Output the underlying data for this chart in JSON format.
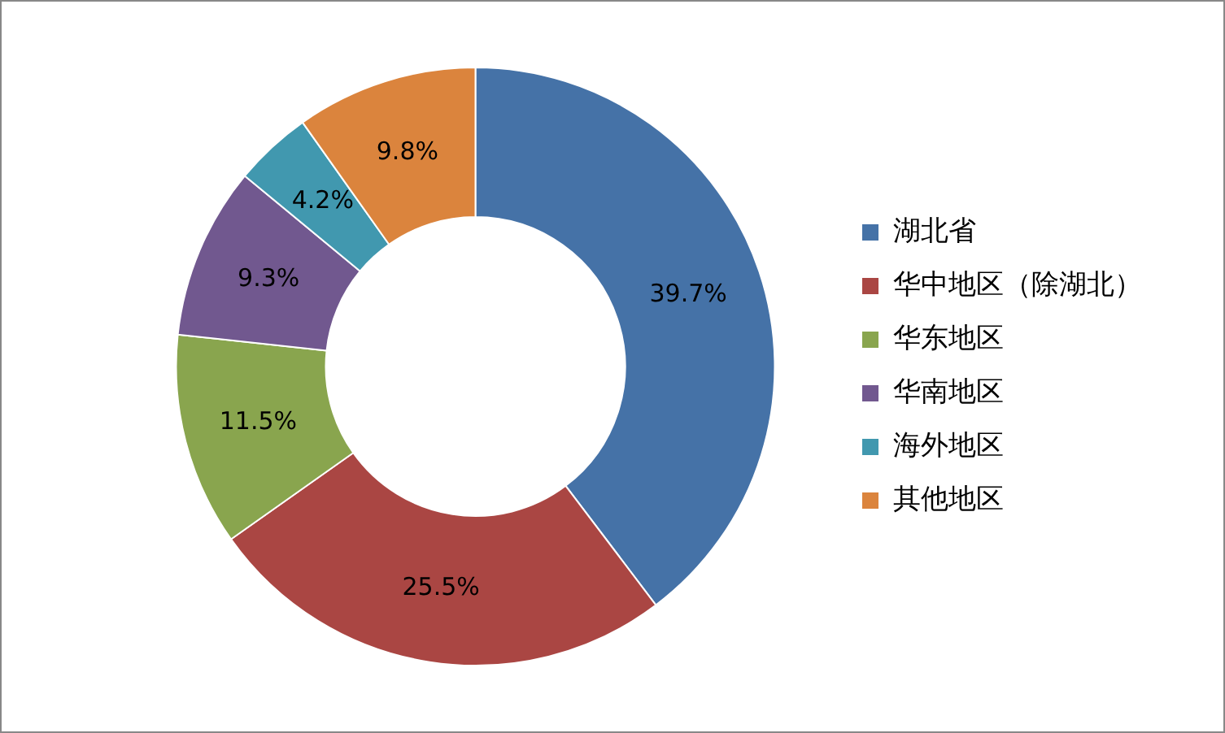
{
  "chart_data": {
    "type": "donut",
    "categories": [
      "湖北省",
      "华中地区（除湖北）",
      "华东地区",
      "华南地区",
      "海外地区",
      "其他地区"
    ],
    "values": [
      39.7,
      25.5,
      11.5,
      9.3,
      4.2,
      9.8
    ],
    "colors": [
      "#4572a7",
      "#aa4643",
      "#89a54e",
      "#71588f",
      "#4198af",
      "#db843d"
    ],
    "value_labels": [
      "39.7%",
      "25.5%",
      "11.5%",
      "9.3%",
      "4.2%",
      "9.8%"
    ],
    "legend": "right"
  }
}
